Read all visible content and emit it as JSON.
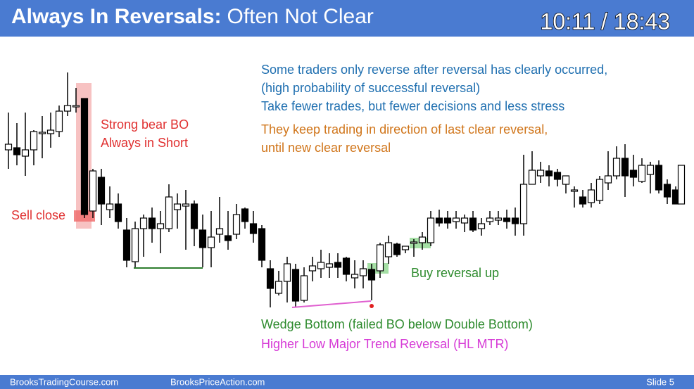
{
  "header": {
    "title_bold": "Always In Reversals:",
    "title_regular": "Often Not Clear",
    "timer": "10:11 / 18:43"
  },
  "annotations": {
    "sell_close": "Sell close",
    "strong_bear_1": "Strong bear BO",
    "strong_bear_2": "Always in Short",
    "blue_1": "Some traders only reverse after reversal has clearly occurred,",
    "blue_2": "(high probability of successful reversal)",
    "blue_3": "Take fewer trades, but fewer decisions and less stress",
    "orange_1": "They keep trading in direction of last clear reversal,",
    "orange_2": "until new clear reversal",
    "buy_reversal": "Buy reversal up",
    "wedge": "Wedge Bottom (failed BO below Double Bottom)",
    "hl_mtr": "Higher Low Major Trend Reversal (HL MTR)"
  },
  "footer": {
    "site_1": "BrooksTradingCourse.com",
    "site_2": "BrooksPriceAction.com",
    "slide": "Slide 5"
  }
}
